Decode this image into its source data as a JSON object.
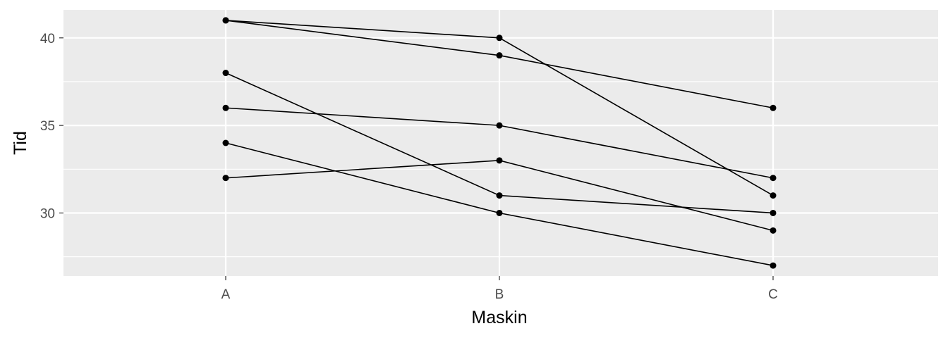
{
  "chart_data": {
    "type": "line",
    "xlabel": "Maskin",
    "ylabel": "Tid",
    "categories": [
      "A",
      "B",
      "C"
    ],
    "yticks": [
      30,
      35,
      40
    ],
    "ylim": [
      26.4,
      41.6
    ],
    "grid": true,
    "series": [
      {
        "values": [
          41,
          40,
          31
        ]
      },
      {
        "values": [
          41,
          39,
          36
        ]
      },
      {
        "values": [
          38,
          31,
          30
        ]
      },
      {
        "values": [
          36,
          35,
          32
        ]
      },
      {
        "values": [
          34,
          30,
          27
        ]
      },
      {
        "values": [
          32,
          33,
          29
        ]
      }
    ],
    "colors": {
      "panel_background": "#ebebeb",
      "grid": "#ffffff",
      "line": "#000000",
      "point": "#000000",
      "tick_text": "#4d4d4d",
      "title_text": "#000000"
    }
  }
}
